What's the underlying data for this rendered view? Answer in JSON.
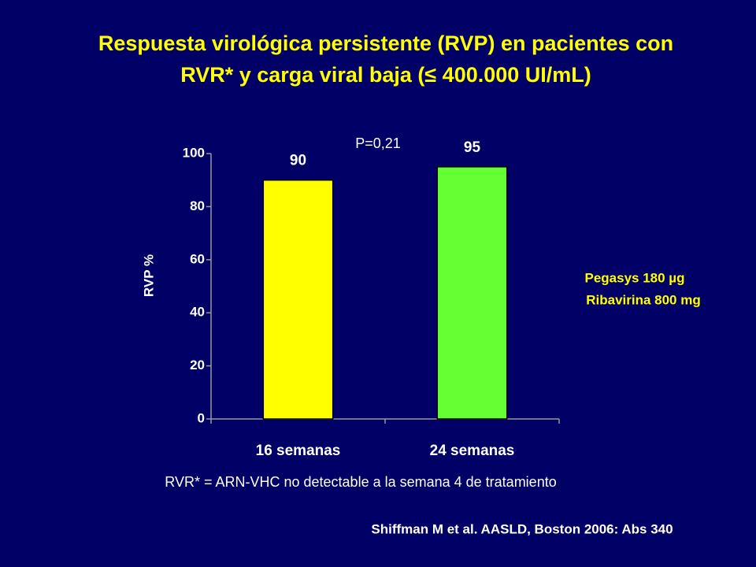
{
  "chart_data": {
    "type": "bar",
    "title": [
      "Respuesta virológica persistente (RVP) en pacientes con",
      "RVR* y carga viral baja (≤ 400.000 UI/mL)"
    ],
    "y_label": "RVP %",
    "categories": [
      "16 semanas",
      "24 semanas"
    ],
    "values": [
      90,
      95
    ],
    "colors": [
      "#ffff00",
      "#66ff33"
    ],
    "ylim": [
      0,
      100
    ],
    "yticks": [
      0,
      20,
      40,
      60,
      80,
      100
    ],
    "annotations": [
      "P=0,21",
      "Pegasys 180 µg",
      "Ribavirina 800 mg"
    ],
    "footnote": "RVR* = ARN-VHC no detectable a la semana 4 de tratamiento",
    "source": "Shiffman M et al. AASLD, Boston 2006: Abs 340"
  }
}
